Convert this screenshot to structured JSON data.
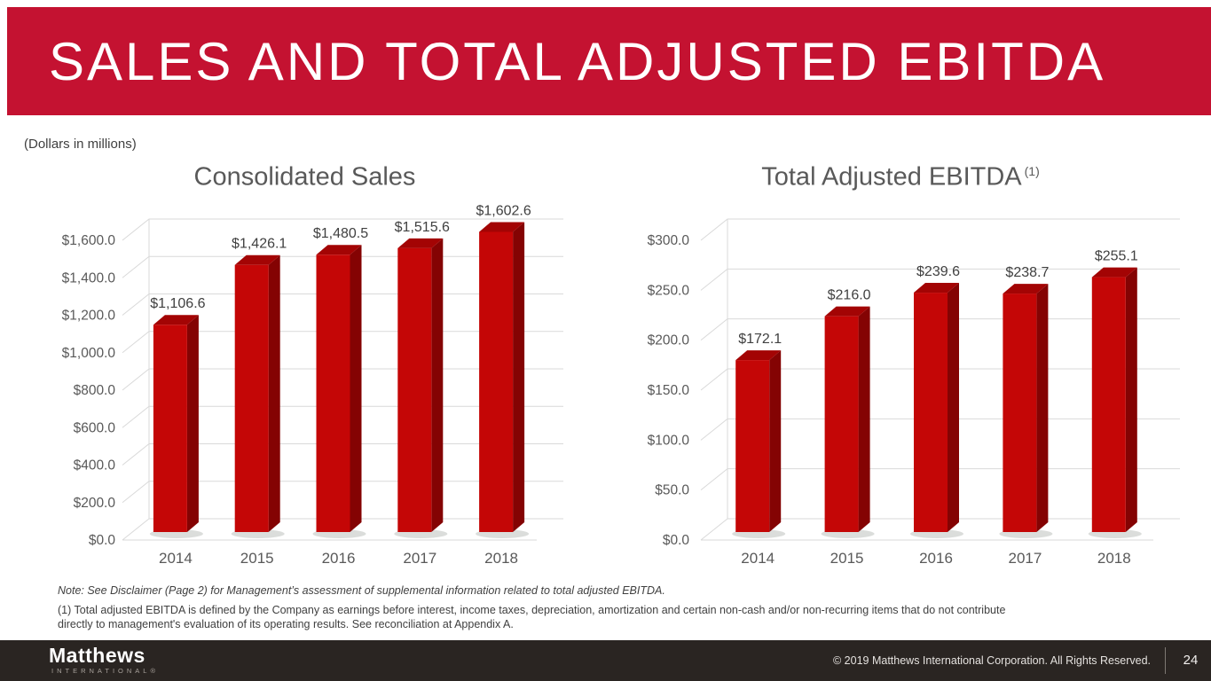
{
  "header": {
    "title": "SALES AND TOTAL ADJUSTED EBITDA",
    "background_color": "#C41231"
  },
  "units_note": "(Dollars in millions)",
  "chart_data": [
    {
      "type": "bar",
      "title": "Consolidated Sales",
      "title_superscript": "",
      "categories": [
        "2014",
        "2015",
        "2016",
        "2017",
        "2018"
      ],
      "values": [
        1106.6,
        1426.1,
        1480.5,
        1515.6,
        1602.6
      ],
      "data_labels": [
        "$1,106.6",
        "$1,426.1",
        "$1,480.5",
        "$1,515.6",
        "$1,602.6"
      ],
      "ylim": [
        0,
        1600
      ],
      "y_step": 200,
      "tick_labels": [
        "$0.0",
        "$200.0",
        "$400.0",
        "$600.0",
        "$800.0",
        "$1,000.0",
        "$1,200.0",
        "$1,400.0",
        "$1,600.0"
      ],
      "grid": true,
      "legend": "none",
      "style": "3d-column",
      "colors": {
        "front": "#C40606",
        "top": "#A30404",
        "side": "#840303",
        "gridline": "#D9D9D9"
      }
    },
    {
      "type": "bar",
      "title": "Total Adjusted EBITDA",
      "title_superscript": "(1)",
      "categories": [
        "2014",
        "2015",
        "2016",
        "2017",
        "2018"
      ],
      "values": [
        172.1,
        216.0,
        239.6,
        238.7,
        255.1
      ],
      "data_labels": [
        "$172.1",
        "$216.0",
        "$239.6",
        "$238.7",
        "$255.1"
      ],
      "ylim": [
        0,
        300
      ],
      "y_step": 50,
      "tick_labels": [
        "$0.0",
        "$50.0",
        "$100.0",
        "$150.0",
        "$200.0",
        "$250.0",
        "$300.0"
      ],
      "grid": true,
      "legend": "none",
      "style": "3d-column",
      "colors": {
        "front": "#C40606",
        "top": "#A30404",
        "side": "#840303",
        "gridline": "#D9D9D9"
      }
    }
  ],
  "notes": {
    "disclaimer": "Note: See Disclaimer (Page 2) for Management’s assessment of supplemental information related to total adjusted EBITDA.",
    "footnote_line1": "(1) Total adjusted EBITDA is defined by the Company as earnings before interest, income taxes, depreciation, amortization and certain non-cash and/or non-recurring items that do not contribute",
    "footnote_line2": "directly to management's evaluation of its operating results. See reconciliation at Appendix A."
  },
  "footer": {
    "background_color": "#2A2522",
    "logo_primary": "Matthews",
    "logo_secondary": "INTERNATIONAL®",
    "copyright": "© 2019 Matthews International Corporation. All Rights Reserved.",
    "page_number": "24"
  }
}
